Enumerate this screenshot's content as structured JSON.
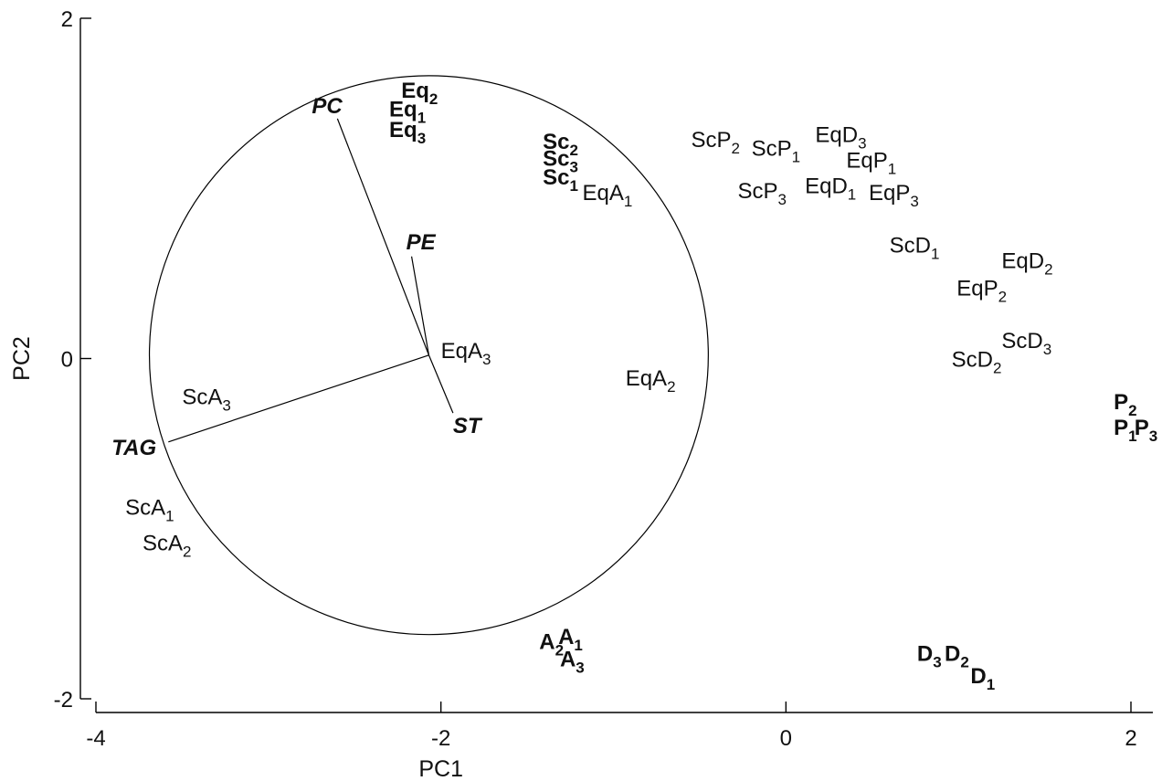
{
  "chart_data": {
    "type": "scatter",
    "xlabel": "PC1",
    "ylabel": "PC2",
    "xlim": [
      -4.1,
      2.15
    ],
    "ylim": [
      -2.05,
      2.0
    ],
    "xticks": [
      -4,
      -2,
      0,
      2
    ],
    "yticks": [
      -2,
      0,
      2
    ],
    "xtick_labels": [
      "-4",
      "-2",
      "0",
      "2"
    ],
    "ytick_labels": [
      "-2",
      "0",
      "2"
    ],
    "grid": false,
    "correlation_circle": {
      "center": [
        -2.07,
        0.02
      ],
      "radius": 1.62
    },
    "vectors": [
      {
        "label": "PC",
        "x": -2.6,
        "y": 1.41
      },
      {
        "label": "PE",
        "x": -2.17,
        "y": 0.6
      },
      {
        "label": "ST",
        "x": -1.93,
        "y": -0.32
      },
      {
        "label": "TAG",
        "x": -3.58,
        "y": -0.49
      }
    ],
    "points": [
      {
        "base": "Eq",
        "sub": "1",
        "bold": true,
        "x": -2.3,
        "y": 1.47
      },
      {
        "base": "Eq",
        "sub": "2",
        "bold": true,
        "x": -2.23,
        "y": 1.58
      },
      {
        "base": "Eq",
        "sub": "3",
        "bold": true,
        "x": -2.3,
        "y": 1.35
      },
      {
        "base": "Sc",
        "sub": "2",
        "bold": true,
        "x": -1.41,
        "y": 1.28
      },
      {
        "base": "Sc",
        "sub": "3",
        "bold": true,
        "x": -1.41,
        "y": 1.18
      },
      {
        "base": "Sc",
        "sub": "1",
        "bold": true,
        "x": -1.41,
        "y": 1.07
      },
      {
        "base": "EqA",
        "sub": "1",
        "bold": false,
        "x": -1.18,
        "y": 0.98
      },
      {
        "base": "EqA",
        "sub": "3",
        "bold": false,
        "x": -2.0,
        "y": 0.05
      },
      {
        "base": "EqA",
        "sub": "2",
        "bold": false,
        "x": -0.93,
        "y": -0.11
      },
      {
        "base": "ScA",
        "sub": "3",
        "bold": false,
        "x": -3.5,
        "y": -0.22
      },
      {
        "base": "ScA",
        "sub": "1",
        "bold": false,
        "x": -3.83,
        "y": -0.87
      },
      {
        "base": "ScA",
        "sub": "2",
        "bold": false,
        "x": -3.73,
        "y": -1.08
      },
      {
        "base": "A",
        "sub": "2",
        "bold": true,
        "x": -1.43,
        "y": -1.66
      },
      {
        "base": "A",
        "sub": "1",
        "bold": true,
        "x": -1.32,
        "y": -1.63
      },
      {
        "base": "A",
        "sub": "3",
        "bold": true,
        "x": -1.31,
        "y": -1.76
      },
      {
        "base": "ScP",
        "sub": "2",
        "bold": false,
        "x": -0.55,
        "y": 1.29
      },
      {
        "base": "ScP",
        "sub": "1",
        "bold": false,
        "x": -0.2,
        "y": 1.24
      },
      {
        "base": "EqD",
        "sub": "3",
        "bold": false,
        "x": 0.17,
        "y": 1.32
      },
      {
        "base": "EqP",
        "sub": "1",
        "bold": false,
        "x": 0.35,
        "y": 1.17
      },
      {
        "base": "ScP",
        "sub": "3",
        "bold": false,
        "x": -0.28,
        "y": 0.99
      },
      {
        "base": "EqD",
        "sub": "1",
        "bold": false,
        "x": 0.11,
        "y": 1.02
      },
      {
        "base": "EqP",
        "sub": "3",
        "bold": false,
        "x": 0.48,
        "y": 0.98
      },
      {
        "base": "ScD",
        "sub": "1",
        "bold": false,
        "x": 0.6,
        "y": 0.67
      },
      {
        "base": "EqD",
        "sub": "2",
        "bold": false,
        "x": 1.25,
        "y": 0.58
      },
      {
        "base": "EqP",
        "sub": "2",
        "bold": false,
        "x": 0.99,
        "y": 0.42
      },
      {
        "base": "ScD",
        "sub": "3",
        "bold": false,
        "x": 1.25,
        "y": 0.11
      },
      {
        "base": "ScD",
        "sub": "2",
        "bold": false,
        "x": 0.96,
        "y": 0.0
      },
      {
        "base": "P",
        "sub": "2",
        "bold": true,
        "x": 1.9,
        "y": -0.25
      },
      {
        "base": "P",
        "sub": "1",
        "bold": true,
        "x": 1.9,
        "y": -0.4
      },
      {
        "base": "P",
        "sub": "3",
        "bold": true,
        "x": 2.02,
        "y": -0.4
      },
      {
        "base": "D",
        "sub": "3",
        "bold": true,
        "x": 0.76,
        "y": -1.73
      },
      {
        "base": "D",
        "sub": "2",
        "bold": true,
        "x": 0.92,
        "y": -1.73
      },
      {
        "base": "D",
        "sub": "1",
        "bold": true,
        "x": 1.07,
        "y": -1.86
      }
    ]
  }
}
